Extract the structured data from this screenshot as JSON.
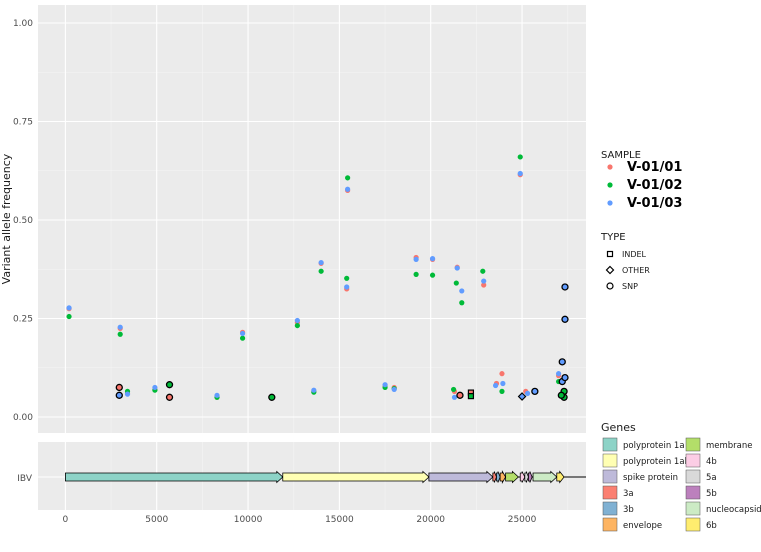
{
  "chart_data": {
    "type": "scatter",
    "ylabel": "Variant allele frequency",
    "ylim": [
      0,
      1
    ],
    "xlim": [
      -1500,
      28500
    ],
    "y_ticks": [
      "0.00",
      "0.25",
      "0.50",
      "0.75",
      "1.00"
    ],
    "y_tick_values": [
      0,
      0.25,
      0.5,
      0.75,
      1.0
    ],
    "x_ticks": [
      "0",
      "5000",
      "10000",
      "15000",
      "20000",
      "25000"
    ],
    "x_tick_values": [
      0,
      5000,
      10000,
      15000,
      20000,
      25000
    ],
    "sample_legend": {
      "title": "SAMPLE",
      "items": [
        {
          "name": "V-01/01",
          "color": "#F8766D"
        },
        {
          "name": "V-01/02",
          "color": "#00BA38"
        },
        {
          "name": "V-01/03",
          "color": "#619CFF"
        }
      ]
    },
    "type_legend": {
      "title": "TYPE",
      "items": [
        {
          "name": "INDEL",
          "shape": "square"
        },
        {
          "name": "OTHER",
          "shape": "diamond"
        },
        {
          "name": "SNP",
          "shape": "circle"
        }
      ]
    },
    "series": [
      {
        "name": "V-01/01",
        "color": "#F8766D",
        "points": [
          [
            200,
            0.275
          ],
          [
            3000,
            0.225
          ],
          [
            3400,
            0.06
          ],
          [
            4900,
            0.07
          ],
          [
            8300,
            0.05
          ],
          [
            9700,
            0.215
          ],
          [
            12700,
            0.24
          ],
          [
            13600,
            0.065
          ],
          [
            14000,
            0.39
          ],
          [
            15400,
            0.325
          ],
          [
            15450,
            0.575
          ],
          [
            17500,
            0.08
          ],
          [
            18000,
            0.075
          ],
          [
            19200,
            0.405
          ],
          [
            20100,
            0.4
          ],
          [
            21300,
            0.065
          ],
          [
            21450,
            0.38
          ],
          [
            22900,
            0.335
          ],
          [
            23600,
            0.085
          ],
          [
            23900,
            0.11
          ],
          [
            24900,
            0.615
          ],
          [
            25200,
            0.065
          ],
          [
            27000,
            0.105
          ]
        ]
      },
      {
        "name": "V-01/02",
        "color": "#00BA38",
        "points": [
          [
            200,
            0.255
          ],
          [
            3000,
            0.21
          ],
          [
            3400,
            0.065
          ],
          [
            4900,
            0.068
          ],
          [
            8300,
            0.05
          ],
          [
            9700,
            0.2
          ],
          [
            12700,
            0.232
          ],
          [
            13600,
            0.063
          ],
          [
            14000,
            0.37
          ],
          [
            15400,
            0.352
          ],
          [
            15450,
            0.607
          ],
          [
            17500,
            0.075
          ],
          [
            18000,
            0.072
          ],
          [
            19200,
            0.362
          ],
          [
            20100,
            0.36
          ],
          [
            21250,
            0.07
          ],
          [
            21400,
            0.34
          ],
          [
            21700,
            0.29
          ],
          [
            22850,
            0.37
          ],
          [
            23900,
            0.065
          ],
          [
            24900,
            0.66
          ],
          [
            27000,
            0.09
          ]
        ]
      },
      {
        "name": "V-01/03",
        "color": "#619CFF",
        "points": [
          [
            200,
            0.277
          ],
          [
            3000,
            0.228
          ],
          [
            3400,
            0.058
          ],
          [
            4900,
            0.075
          ],
          [
            8300,
            0.055
          ],
          [
            9700,
            0.212
          ],
          [
            12700,
            0.245
          ],
          [
            13600,
            0.068
          ],
          [
            14000,
            0.392
          ],
          [
            15400,
            0.33
          ],
          [
            15450,
            0.578
          ],
          [
            17500,
            0.082
          ],
          [
            18000,
            0.07
          ],
          [
            19200,
            0.4
          ],
          [
            20100,
            0.402
          ],
          [
            21300,
            0.05
          ],
          [
            21450,
            0.378
          ],
          [
            21700,
            0.32
          ],
          [
            22900,
            0.345
          ],
          [
            23550,
            0.08
          ],
          [
            23950,
            0.085
          ],
          [
            24900,
            0.618
          ],
          [
            25300,
            0.06
          ],
          [
            27000,
            0.11
          ]
        ]
      }
    ],
    "outlined_points": [
      {
        "x": 2950,
        "y": 0.075,
        "sample": "V-01/01",
        "type": "SNP"
      },
      {
        "x": 2950,
        "y": 0.055,
        "sample": "V-01/03",
        "type": "SNP"
      },
      {
        "x": 5700,
        "y": 0.082,
        "sample": "V-01/02",
        "type": "SNP"
      },
      {
        "x": 5700,
        "y": 0.05,
        "sample": "V-01/01",
        "type": "SNP"
      },
      {
        "x": 11300,
        "y": 0.05,
        "sample": "V-01/02",
        "type": "SNP"
      },
      {
        "x": 21600,
        "y": 0.055,
        "sample": "V-01/01",
        "type": "SNP"
      },
      {
        "x": 22200,
        "y": 0.062,
        "sample": "V-01/01",
        "type": "INDEL"
      },
      {
        "x": 22200,
        "y": 0.053,
        "sample": "V-01/02",
        "type": "INDEL"
      },
      {
        "x": 25000,
        "y": 0.052,
        "sample": "V-01/03",
        "type": "OTHER"
      },
      {
        "x": 25700,
        "y": 0.065,
        "sample": "V-01/03",
        "type": "SNP"
      },
      {
        "x": 27200,
        "y": 0.14,
        "sample": "V-01/03",
        "type": "SNP"
      },
      {
        "x": 27200,
        "y": 0.09,
        "sample": "V-01/03",
        "type": "SNP"
      },
      {
        "x": 27350,
        "y": 0.33,
        "sample": "V-01/03",
        "type": "SNP"
      },
      {
        "x": 27350,
        "y": 0.248,
        "sample": "V-01/03",
        "type": "SNP"
      },
      {
        "x": 27350,
        "y": 0.1,
        "sample": "V-01/03",
        "type": "SNP"
      },
      {
        "x": 27300,
        "y": 0.065,
        "sample": "V-01/02",
        "type": "SNP"
      },
      {
        "x": 27300,
        "y": 0.05,
        "sample": "V-01/02",
        "type": "SNP"
      },
      {
        "x": 27150,
        "y": 0.055,
        "sample": "V-01/02",
        "type": "SNP"
      }
    ],
    "gene_track": {
      "label": "IBV",
      "genome_end": 28500,
      "genes": [
        {
          "name": "polyprotein 1a",
          "start": 0,
          "end": 11900,
          "color": "#8DD3C7"
        },
        {
          "name": "polyprotein 1ab",
          "start": 11900,
          "end": 19900,
          "color": "#FFFFB3"
        },
        {
          "name": "spike protein",
          "start": 19900,
          "end": 23400,
          "color": "#BEBADA"
        },
        {
          "name": "3a",
          "start": 23400,
          "end": 23600,
          "color": "#FB8072"
        },
        {
          "name": "3b",
          "start": 23600,
          "end": 23800,
          "color": "#80B1D3"
        },
        {
          "name": "envelope",
          "start": 23800,
          "end": 24100,
          "color": "#FDB462"
        },
        {
          "name": "membrane",
          "start": 24100,
          "end": 24800,
          "color": "#B3DE69"
        },
        {
          "name": "4b",
          "start": 24900,
          "end": 25150,
          "color": "#FCCDE5"
        },
        {
          "name": "5a",
          "start": 25150,
          "end": 25350,
          "color": "#D9D9D9"
        },
        {
          "name": "5b",
          "start": 25350,
          "end": 25550,
          "color": "#BC80BD"
        },
        {
          "name": "nucleocapsid",
          "start": 25600,
          "end": 26900,
          "color": "#CCEBC5"
        },
        {
          "name": "6b",
          "start": 26900,
          "end": 27300,
          "color": "#FFED6F"
        }
      ]
    },
    "gene_legend_title": "Genes",
    "panel_background": "#EBEBEB",
    "grid": true
  }
}
